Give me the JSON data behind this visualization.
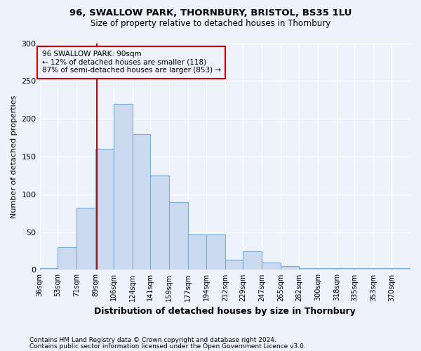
{
  "title1": "96, SWALLOW PARK, THORNBURY, BRISTOL, BS35 1LU",
  "title2": "Size of property relative to detached houses in Thornbury",
  "xlabel": "Distribution of detached houses by size in Thornbury",
  "ylabel": "Number of detached properties",
  "annotation_line1": "96 SWALLOW PARK: 90sqm",
  "annotation_line2": "← 12% of detached houses are smaller (118)",
  "annotation_line3": "87% of semi-detached houses are larger (853) →",
  "footer1": "Contains HM Land Registry data © Crown copyright and database right 2024.",
  "footer2": "Contains public sector information licensed under the Open Government Licence v3.0.",
  "subject_value": 90,
  "bar_edges": [
    36,
    53,
    71,
    89,
    106,
    124,
    141,
    159,
    177,
    194,
    212,
    229,
    247,
    265,
    282,
    300,
    318,
    335,
    353,
    370,
    388
  ],
  "bar_heights": [
    2,
    30,
    82,
    160,
    220,
    180,
    125,
    90,
    47,
    47,
    13,
    25,
    10,
    5,
    2,
    2,
    2,
    2,
    2,
    2
  ],
  "bar_color": "#ccdaf0",
  "bar_edge_color": "#7aabd4",
  "vline_color": "#cc0000",
  "annotation_box_color": "#cc0000",
  "background_color": "#eef2fb",
  "grid_color": "#ffffff",
  "ylim": [
    0,
    300
  ],
  "yticks": [
    0,
    50,
    100,
    150,
    200,
    250,
    300
  ]
}
